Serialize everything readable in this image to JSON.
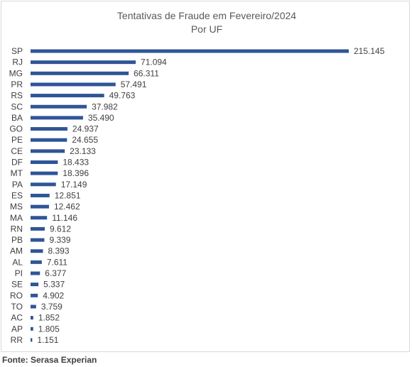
{
  "chart_data": {
    "type": "bar",
    "orientation": "horizontal",
    "title": "Tentativas de Fraude em Fevereiro/2024",
    "subtitle": "Por UF",
    "categories": [
      "SP",
      "RJ",
      "MG",
      "PR",
      "RS",
      "SC",
      "BA",
      "GO",
      "PE",
      "CE",
      "DF",
      "MT",
      "PA",
      "ES",
      "MS",
      "MA",
      "RN",
      "PB",
      "AM",
      "AL",
      "PI",
      "SE",
      "RO",
      "TO",
      "AC",
      "AP",
      "RR"
    ],
    "values": [
      215145,
      71094,
      66311,
      57491,
      49763,
      37982,
      35490,
      24937,
      24655,
      23133,
      18433,
      18396,
      17149,
      12851,
      12462,
      11146,
      9612,
      9339,
      8393,
      7611,
      6377,
      5337,
      4902,
      3759,
      1852,
      1805,
      1151
    ],
    "value_labels": [
      "215.145",
      "71.094",
      "66.311",
      "57.491",
      "49.763",
      "37.982",
      "35.490",
      "24.937",
      "24.655",
      "23.133",
      "18.433",
      "18.396",
      "17.149",
      "12.851",
      "12.462",
      "11.146",
      "9.612",
      "9.339",
      "8.393",
      "7.611",
      "6.377",
      "5.337",
      "4.902",
      "3.759",
      "1.852",
      "1.805",
      "1.151"
    ],
    "bar_color": "#2f5597",
    "xlim": [
      0,
      215145
    ],
    "grid": false,
    "legend": "none"
  },
  "source": "Fonte: Serasa Experian"
}
